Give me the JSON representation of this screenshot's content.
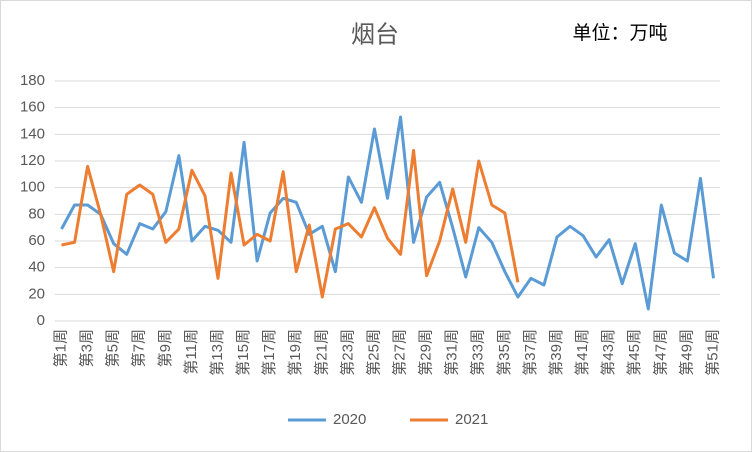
{
  "chart_data": {
    "type": "line",
    "title": "烟台",
    "annotation": "单位：万吨",
    "categories": [
      "第1周",
      null,
      "第3周",
      null,
      "第5周",
      null,
      "第7周",
      null,
      "第9周",
      null,
      "第11周",
      null,
      "第13周",
      null,
      "第15周",
      null,
      "第17周",
      null,
      "第19周",
      null,
      "第21周",
      null,
      "第23周",
      null,
      "第25周",
      null,
      "第27周",
      null,
      "第29周",
      null,
      "第31周",
      null,
      "第33周",
      null,
      "第35周",
      null,
      "第37周",
      null,
      "第39周",
      null,
      "第41周",
      null,
      "第43周",
      null,
      "第45周",
      null,
      "第47周",
      null,
      "第49周",
      null,
      "第51周"
    ],
    "series": [
      {
        "name": "2020",
        "color": "#5b9bd5",
        "values": [
          69,
          87,
          87,
          80,
          58,
          50,
          73,
          69,
          82,
          124,
          60,
          71,
          68,
          59,
          134,
          45,
          81,
          92,
          89,
          65,
          71,
          37,
          108,
          89,
          144,
          92,
          153,
          59,
          93,
          104,
          70,
          33,
          70,
          59,
          37,
          18,
          32,
          27,
          63,
          71,
          64,
          48,
          61,
          28,
          58,
          9,
          87,
          51,
          45,
          107,
          32
        ]
      },
      {
        "name": "2021",
        "color": "#ed7d31",
        "values": [
          57,
          59,
          116,
          80,
          37,
          95,
          102,
          95,
          59,
          69,
          113,
          94,
          32,
          111,
          57,
          65,
          60,
          112,
          37,
          72,
          18,
          69,
          73,
          63,
          85,
          62,
          50,
          128,
          34,
          60,
          99,
          59,
          120,
          87,
          81,
          29,
          null,
          null,
          null,
          null,
          null,
          null,
          null,
          null,
          null,
          null,
          null,
          null,
          null,
          null,
          null
        ]
      }
    ],
    "ylim": [
      0,
      180
    ],
    "yticks": [
      0,
      20,
      40,
      60,
      80,
      100,
      120,
      140,
      160,
      180
    ],
    "grid": true,
    "legend": "bottom"
  }
}
